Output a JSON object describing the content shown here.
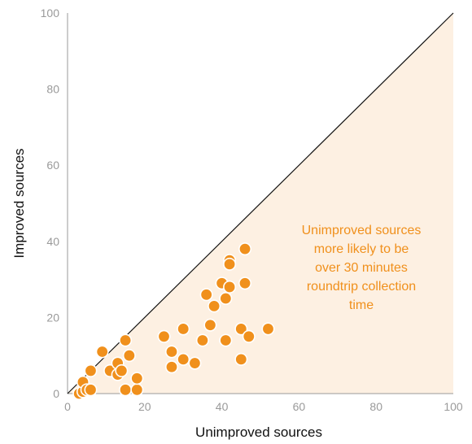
{
  "chart_data": {
    "type": "scatter",
    "title": "",
    "xlabel": "Unimproved sources",
    "ylabel": "Improved sources",
    "xlim": [
      0,
      100
    ],
    "ylim": [
      0,
      100
    ],
    "x_ticks": [
      "0",
      "20",
      "40",
      "60",
      "80",
      "100"
    ],
    "y_ticks": [
      "0",
      "20",
      "40",
      "60",
      "80",
      "100"
    ],
    "grid": false,
    "reference_line": "y = x",
    "shaded_region": "below y = x",
    "annotation": {
      "lines": [
        "Unimproved sources",
        "more likely to be",
        "over 30 minutes",
        "roundtrip collection",
        "time"
      ]
    },
    "colors": {
      "points": "#f0901c",
      "shading": "#fdf0e2",
      "annotation": "#f0901c",
      "reference_line": "#111111"
    },
    "points": [
      {
        "x": 3,
        "y": 0
      },
      {
        "x": 4,
        "y": 0.5
      },
      {
        "x": 4,
        "y": 3
      },
      {
        "x": 5,
        "y": 1
      },
      {
        "x": 6,
        "y": 1
      },
      {
        "x": 6,
        "y": 6
      },
      {
        "x": 9,
        "y": 11
      },
      {
        "x": 11,
        "y": 6
      },
      {
        "x": 13,
        "y": 5
      },
      {
        "x": 13,
        "y": 8
      },
      {
        "x": 14,
        "y": 6
      },
      {
        "x": 15,
        "y": 14
      },
      {
        "x": 15,
        "y": 1
      },
      {
        "x": 16,
        "y": 10
      },
      {
        "x": 18,
        "y": 1
      },
      {
        "x": 18,
        "y": 4
      },
      {
        "x": 25,
        "y": 15
      },
      {
        "x": 27,
        "y": 11
      },
      {
        "x": 27,
        "y": 7
      },
      {
        "x": 30,
        "y": 17
      },
      {
        "x": 30,
        "y": 9
      },
      {
        "x": 33,
        "y": 8
      },
      {
        "x": 35,
        "y": 14
      },
      {
        "x": 36,
        "y": 26
      },
      {
        "x": 37,
        "y": 18
      },
      {
        "x": 38,
        "y": 23
      },
      {
        "x": 40,
        "y": 29
      },
      {
        "x": 41,
        "y": 25
      },
      {
        "x": 41,
        "y": 14
      },
      {
        "x": 42,
        "y": 35
      },
      {
        "x": 42,
        "y": 34
      },
      {
        "x": 42,
        "y": 28
      },
      {
        "x": 45,
        "y": 17
      },
      {
        "x": 45,
        "y": 9
      },
      {
        "x": 46,
        "y": 38
      },
      {
        "x": 46,
        "y": 29
      },
      {
        "x": 47,
        "y": 15
      },
      {
        "x": 52,
        "y": 17
      }
    ]
  }
}
